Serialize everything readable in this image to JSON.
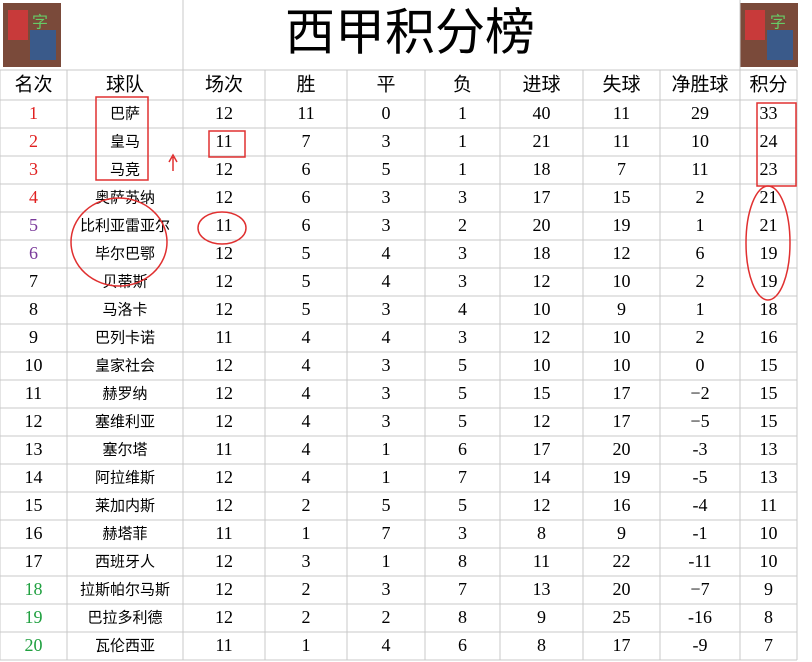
{
  "header": {
    "title": "西甲积分榜"
  },
  "table": {
    "columns": [
      "名次",
      "球队",
      "场次",
      "胜",
      "平",
      "负",
      "进球",
      "失球",
      "净胜球",
      "积分"
    ],
    "rows": [
      [
        "1",
        "巴萨",
        "12",
        "11",
        "0",
        "1",
        "40",
        "11",
        "29",
        "33"
      ],
      [
        "2",
        "皇马",
        "11",
        "7",
        "3",
        "1",
        "21",
        "11",
        "10",
        "24"
      ],
      [
        "3",
        "马竞",
        "12",
        "6",
        "5",
        "1",
        "18",
        "7",
        "11",
        "23"
      ],
      [
        "4",
        "奥萨苏纳",
        "12",
        "6",
        "3",
        "3",
        "17",
        "15",
        "2",
        "21"
      ],
      [
        "5",
        "比利亚雷亚尔",
        "11",
        "6",
        "3",
        "2",
        "20",
        "19",
        "1",
        "21"
      ],
      [
        "6",
        "毕尔巴鄂",
        "12",
        "5",
        "4",
        "3",
        "18",
        "12",
        "6",
        "19"
      ],
      [
        "7",
        "贝蒂斯",
        "12",
        "5",
        "4",
        "3",
        "12",
        "10",
        "2",
        "19"
      ],
      [
        "8",
        "马洛卡",
        "12",
        "5",
        "3",
        "4",
        "10",
        "9",
        "1",
        "18"
      ],
      [
        "9",
        "巴列卡诺",
        "11",
        "4",
        "4",
        "3",
        "12",
        "10",
        "2",
        "16"
      ],
      [
        "10",
        "皇家社会",
        "12",
        "4",
        "3",
        "5",
        "10",
        "10",
        "0",
        "15"
      ],
      [
        "11",
        "赫罗纳",
        "12",
        "4",
        "3",
        "5",
        "15",
        "17",
        "−2",
        "15"
      ],
      [
        "12",
        "塞维利亚",
        "12",
        "4",
        "3",
        "5",
        "12",
        "17",
        "−5",
        "15"
      ],
      [
        "13",
        "塞尔塔",
        "11",
        "4",
        "1",
        "6",
        "17",
        "20",
        "-3",
        "13"
      ],
      [
        "14",
        "阿拉维斯",
        "12",
        "4",
        "1",
        "7",
        "14",
        "19",
        "-5",
        "13"
      ],
      [
        "15",
        "莱加内斯",
        "12",
        "2",
        "5",
        "5",
        "12",
        "16",
        "-4",
        "11"
      ],
      [
        "16",
        "赫塔菲",
        "11",
        "1",
        "7",
        "3",
        "8",
        "9",
        "-1",
        "10"
      ],
      [
        "17",
        "西班牙人",
        "12",
        "3",
        "1",
        "8",
        "11",
        "22",
        "-11",
        "10"
      ],
      [
        "18",
        "拉斯帕尔马斯",
        "12",
        "2",
        "3",
        "7",
        "13",
        "20",
        "−7",
        "9"
      ],
      [
        "19",
        "巴拉多利德",
        "12",
        "2",
        "2",
        "8",
        "9",
        "25",
        "-16",
        "8"
      ],
      [
        "20",
        "瓦伦西亚",
        "11",
        "1",
        "4",
        "6",
        "8",
        "17",
        "-9",
        "7"
      ]
    ]
  }
}
